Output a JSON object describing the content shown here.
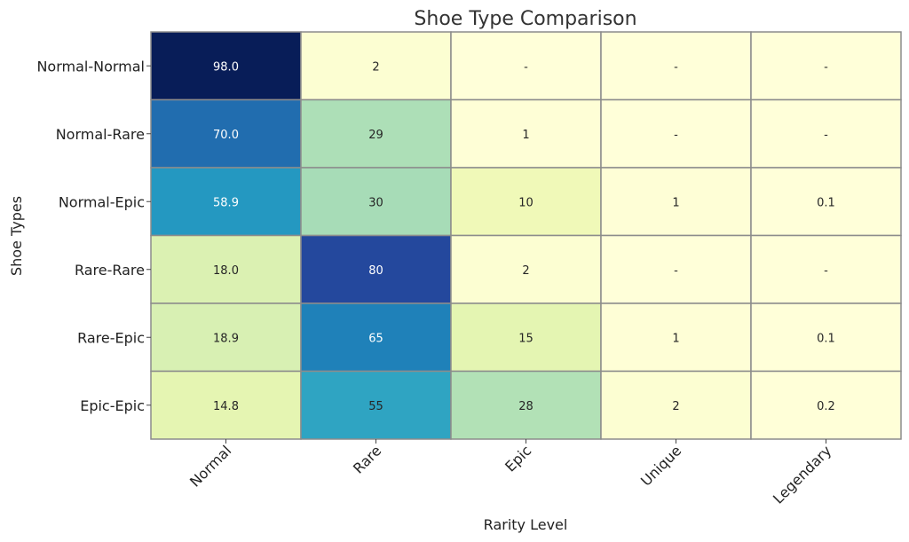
{
  "chart_data": {
    "type": "heatmap",
    "title": "Shoe Type Comparison",
    "xlabel": "Rarity Level",
    "ylabel": "Shoe Types",
    "x_categories": [
      "Normal",
      "Rare",
      "Epic",
      "Unique",
      "Legendary"
    ],
    "y_categories": [
      "Normal-Normal",
      "Normal-Rare",
      "Normal-Epic",
      "Rare-Rare",
      "Rare-Epic",
      "Epic-Epic"
    ],
    "values": [
      [
        98.0,
        2,
        null,
        null,
        null
      ],
      [
        70.0,
        29,
        1,
        null,
        null
      ],
      [
        58.9,
        30,
        10,
        1,
        0.1
      ],
      [
        18.0,
        80,
        2,
        null,
        null
      ],
      [
        18.9,
        65,
        15,
        1,
        0.1
      ],
      [
        14.8,
        55,
        28,
        2,
        0.2
      ]
    ],
    "labels": [
      [
        "98.0",
        "2",
        "-",
        "-",
        "-"
      ],
      [
        "70.0",
        "29",
        "1",
        "-",
        "-"
      ],
      [
        "58.9",
        "30",
        "10",
        "1",
        "0.1"
      ],
      [
        "18.0",
        "80",
        "2",
        "-",
        "-"
      ],
      [
        "18.9",
        "65",
        "15",
        "1",
        "0.1"
      ],
      [
        "14.8",
        "55",
        "28",
        "2",
        "0.2"
      ]
    ],
    "colormap": "YlGnBu",
    "value_range": [
      0,
      98
    ],
    "colorbar": false,
    "grid_color": "#8c8c8c",
    "x_tick_rotation_deg": 45
  }
}
